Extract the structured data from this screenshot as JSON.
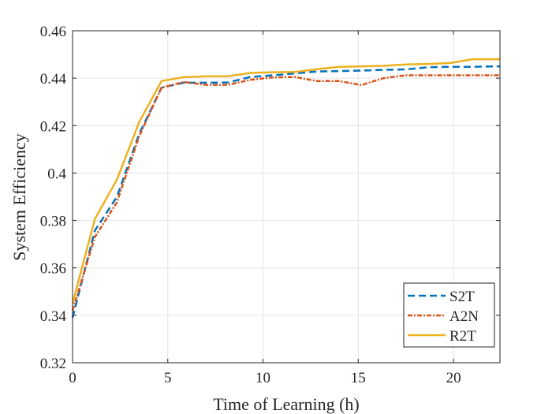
{
  "chart_data": {
    "type": "line",
    "title": "",
    "xlabel": "Time of Learning (h)",
    "ylabel": "System Efficiency",
    "xlim": [
      0,
      22.44
    ],
    "ylim": [
      0.32,
      0.46
    ],
    "xticks": [
      0,
      5,
      10,
      15,
      20
    ],
    "xtick_labels": [
      "0",
      "5",
      "10",
      "15",
      "20"
    ],
    "yticks": [
      0.32,
      0.34,
      0.36,
      0.38,
      0.4,
      0.42,
      0.44,
      0.46
    ],
    "ytick_labels": [
      "0.32",
      "0.34",
      "0.36",
      "0.38",
      "0.4",
      "0.42",
      "0.44",
      "0.46"
    ],
    "grid": true,
    "legend_position": "bottom-right",
    "x": [
      0,
      1.17,
      2.33,
      3.5,
      4.67,
      5.83,
      7,
      8.17,
      9.33,
      10.5,
      11.67,
      12.83,
      14,
      15.17,
      16.33,
      17.5,
      18.67,
      19.83,
      21,
      22.44
    ],
    "series": [
      {
        "name": "S2T",
        "color": "#0072BD",
        "dash": "dashed",
        "values": [
          0.339,
          0.3757,
          0.39,
          0.4165,
          0.436,
          0.4381,
          0.4381,
          0.4382,
          0.4405,
          0.4412,
          0.442,
          0.4428,
          0.443,
          0.4432,
          0.4435,
          0.4437,
          0.4446,
          0.4448,
          0.4448,
          0.445
        ]
      },
      {
        "name": "A2N",
        "color": "#D95319",
        "dash": "dashdot",
        "values": [
          0.342,
          0.373,
          0.3877,
          0.4155,
          0.436,
          0.4384,
          0.4372,
          0.4372,
          0.4393,
          0.4403,
          0.4405,
          0.4388,
          0.4388,
          0.4371,
          0.44,
          0.4412,
          0.4412,
          0.4412,
          0.4412,
          0.4412
        ]
      },
      {
        "name": "R2T",
        "color": "#EDB120",
        "dash": "solid",
        "values": [
          0.345,
          0.3806,
          0.3972,
          0.4215,
          0.4388,
          0.4404,
          0.4408,
          0.4408,
          0.4422,
          0.4425,
          0.4426,
          0.4438,
          0.4448,
          0.445,
          0.4452,
          0.4458,
          0.446,
          0.4464,
          0.448,
          0.448
        ]
      }
    ]
  }
}
